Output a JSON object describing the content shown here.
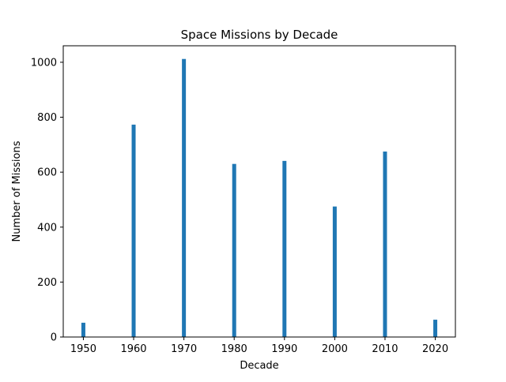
{
  "chart_data": {
    "type": "bar",
    "title": "Space Missions by Decade",
    "xlabel": "Decade",
    "ylabel": "Number of Missions",
    "categories": [
      "1950",
      "1960",
      "1970",
      "1980",
      "1990",
      "2000",
      "2010",
      "2020"
    ],
    "x": [
      1950,
      1960,
      1970,
      1980,
      1990,
      2000,
      2010,
      2020
    ],
    "values": [
      52,
      773,
      1012,
      630,
      641,
      475,
      675,
      63
    ],
    "xlim": [
      1946,
      2024
    ],
    "ylim": [
      0,
      1060
    ],
    "yticks": [
      "0",
      "200",
      "400",
      "600",
      "800",
      "1000"
    ],
    "xticks": [
      "1950",
      "1960",
      "1970",
      "1980",
      "1990",
      "2000",
      "2010",
      "2020"
    ],
    "bar_color": "#1f77b4",
    "grid": false,
    "legend": "none"
  }
}
